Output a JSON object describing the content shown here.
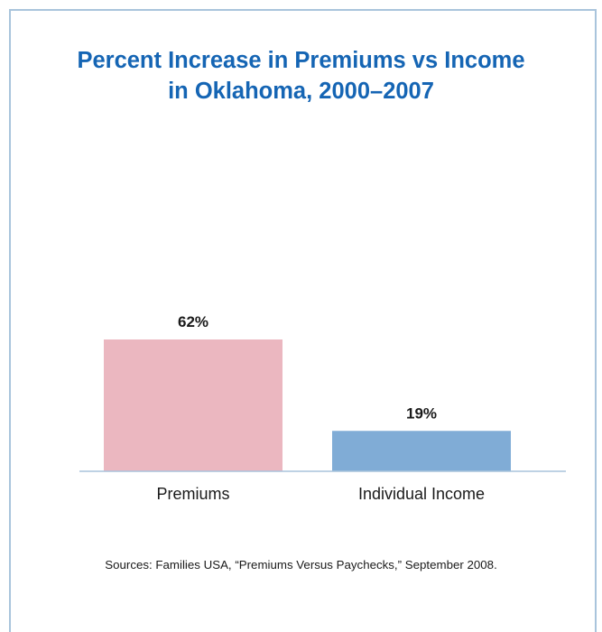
{
  "chart_data": {
    "type": "bar",
    "title_lines": [
      "Percent Increase in Premiums vs Income",
      "in Oklahoma, 2000–2007"
    ],
    "categories": [
      "Premiums",
      "Individual Income"
    ],
    "values": [
      62,
      19
    ],
    "value_labels": [
      "62%",
      "19%"
    ],
    "colors": [
      "#ebb7c0",
      "#80acd6"
    ],
    "axis_color": "#a9c4dc",
    "ylim": [
      0,
      62
    ],
    "grid": false,
    "legend": "none",
    "xlabel": "",
    "ylabel": ""
  },
  "footer": {
    "source": "Sources: Families USA, “Premiums Versus Paychecks,” September 2008."
  },
  "theme": {
    "title_color": "#1565b4",
    "border_color": "#a9c4dc"
  }
}
